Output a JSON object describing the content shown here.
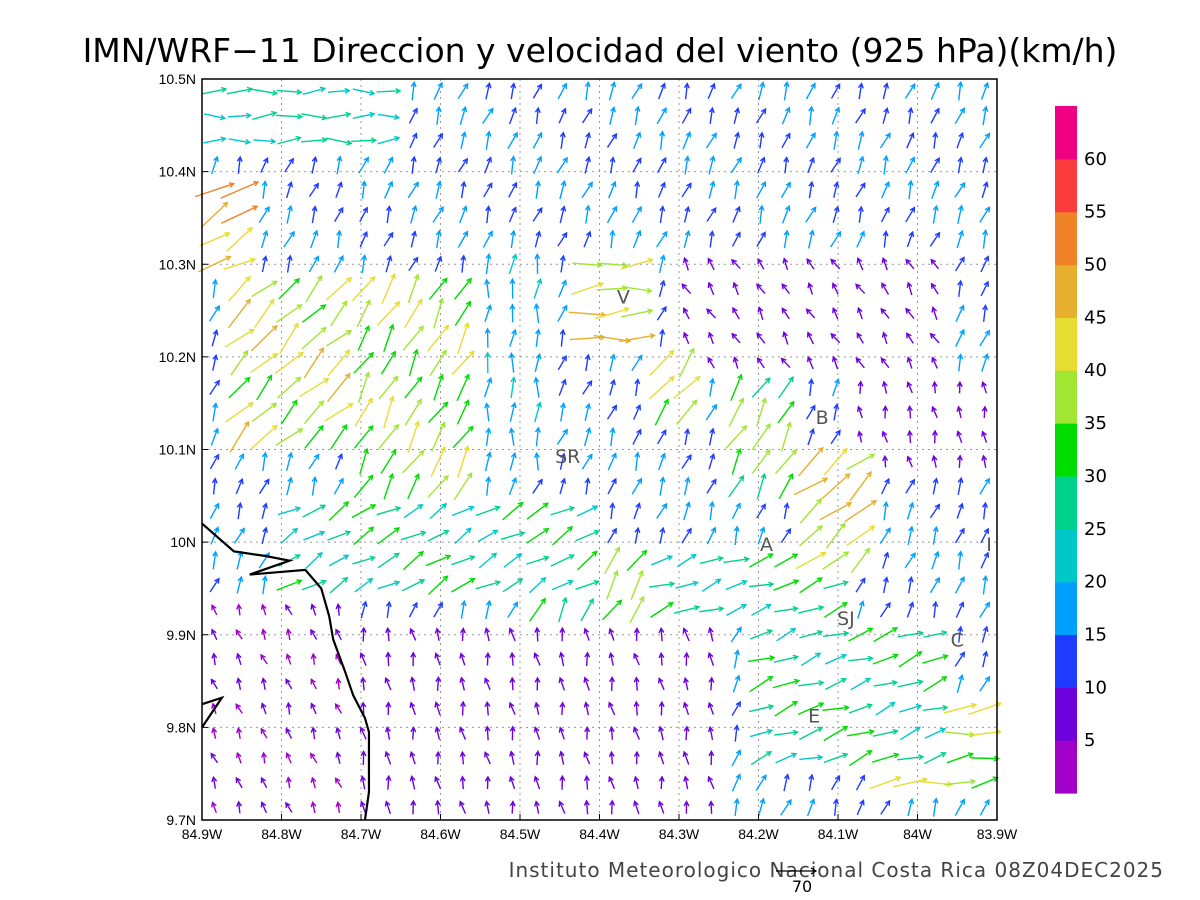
{
  "title": "IMN/WRF−11 Direccion y velocidad del viento (925 hPa)(km/h)",
  "credit": "Instituto Meteorologico Nacional Costa Rica 08Z04DEC2025",
  "reference_vector_label": "70",
  "map": {
    "lon_range": [
      -84.9,
      -83.9
    ],
    "lat_range": [
      9.7,
      10.5
    ],
    "grid": "dotted",
    "x_ticks": [
      {
        "lon": -84.9,
        "label": "84.9W"
      },
      {
        "lon": -84.8,
        "label": "84.8W"
      },
      {
        "lon": -84.7,
        "label": "84.7W"
      },
      {
        "lon": -84.6,
        "label": "84.6W"
      },
      {
        "lon": -84.5,
        "label": "84.5W"
      },
      {
        "lon": -84.4,
        "label": "84.4W"
      },
      {
        "lon": -84.3,
        "label": "84.3W"
      },
      {
        "lon": -84.2,
        "label": "84.2W"
      },
      {
        "lon": -84.1,
        "label": "84.1W"
      },
      {
        "lon": -84.0,
        "label": "84W"
      },
      {
        "lon": -83.9,
        "label": "83.9W"
      }
    ],
    "y_ticks": [
      {
        "lat": 9.7,
        "label": "9.7N"
      },
      {
        "lat": 9.8,
        "label": "9.8N"
      },
      {
        "lat": 9.9,
        "label": "9.9N"
      },
      {
        "lat": 10.0,
        "label": "10N"
      },
      {
        "lat": 10.1,
        "label": "10.1N"
      },
      {
        "lat": 10.2,
        "label": "10.2N"
      },
      {
        "lat": 10.3,
        "label": "10.3N"
      },
      {
        "lat": 10.4,
        "label": "10.4N"
      },
      {
        "lat": 10.5,
        "label": "10.5N"
      }
    ],
    "places": [
      {
        "label": "V",
        "lon": -84.37,
        "lat": 10.265
      },
      {
        "label": "SR",
        "lon": -84.44,
        "lat": 10.093
      },
      {
        "label": "B",
        "lon": -84.12,
        "lat": 10.135
      },
      {
        "label": "A",
        "lon": -84.19,
        "lat": 9.998
      },
      {
        "label": "SJ",
        "lon": -84.09,
        "lat": 9.918
      },
      {
        "label": "C",
        "lon": -83.95,
        "lat": 9.895
      },
      {
        "label": "E",
        "lon": -84.13,
        "lat": 9.813
      },
      {
        "label": "I",
        "lon": -83.91,
        "lat": 9.998
      }
    ],
    "coastline": [
      [
        [
          -84.9,
          10.02
        ],
        [
          -84.86,
          9.99
        ],
        [
          -84.82,
          9.985
        ],
        [
          -84.79,
          9.98
        ],
        [
          -84.84,
          9.965
        ],
        [
          -84.77,
          9.97
        ],
        [
          -84.75,
          9.95
        ],
        [
          -84.74,
          9.92
        ],
        [
          -84.735,
          9.895
        ],
        [
          -84.72,
          9.86
        ],
        [
          -84.71,
          9.835
        ],
        [
          -84.695,
          9.81
        ],
        [
          -84.69,
          9.795
        ],
        [
          -84.69,
          9.73
        ],
        [
          -84.695,
          9.7
        ]
      ],
      [
        [
          -84.9,
          9.825
        ],
        [
          -84.875,
          9.832
        ],
        [
          -84.9,
          9.8
        ]
      ]
    ],
    "wind_regions": [
      {
        "lon": [
          -84.9,
          -84.65
        ],
        "lat": [
          10.43,
          10.5
        ],
        "dir": 268,
        "speed": 26
      },
      {
        "lon": [
          -84.9,
          -84.85
        ],
        "lat": [
          10.3,
          10.38
        ],
        "dir": 240,
        "speed": 48
      },
      {
        "lon": [
          -84.88,
          -84.72
        ],
        "lat": [
          10.1,
          10.28
        ],
        "dir": 225,
        "speed": 40
      },
      {
        "lon": [
          -84.72,
          -84.55
        ],
        "lat": [
          10.05,
          10.28
        ],
        "dir": 210,
        "speed": 36
      },
      {
        "lon": [
          -84.55,
          -84.47
        ],
        "lat": [
          10.06,
          10.3
        ],
        "dir": 185,
        "speed": 18
      },
      {
        "lon": [
          -84.44,
          -84.33
        ],
        "lat": [
          10.2,
          10.3
        ],
        "dir": 265,
        "speed": 42
      },
      {
        "lon": [
          -84.35,
          -84.28
        ],
        "lat": [
          10.12,
          10.2
        ],
        "dir": 220,
        "speed": 38
      },
      {
        "lon": [
          -84.25,
          -84.15
        ],
        "lat": [
          10.05,
          10.18
        ],
        "dir": 210,
        "speed": 34
      },
      {
        "lon": [
          -84.15,
          -84.05
        ],
        "lat": [
          9.98,
          10.1
        ],
        "dir": 230,
        "speed": 43
      },
      {
        "lon": [
          -84.8,
          -84.4
        ],
        "lat": [
          9.95,
          10.05
        ],
        "dir": 240,
        "speed": 27
      },
      {
        "lon": [
          -84.5,
          -84.35
        ],
        "lat": [
          9.92,
          10.0
        ],
        "dir": 210,
        "speed": 33
      },
      {
        "lon": [
          -84.35,
          -84.1
        ],
        "lat": [
          9.9,
          10.0
        ],
        "dir": 250,
        "speed": 27
      },
      {
        "lon": [
          -84.2,
          -83.95
        ],
        "lat": [
          9.75,
          9.9
        ],
        "dir": 250,
        "speed": 28
      },
      {
        "lon": [
          -84.05,
          -83.9
        ],
        "lat": [
          9.72,
          9.82
        ],
        "dir": 262,
        "speed": 38
      },
      {
        "lon": [
          -84.9,
          -84.7
        ],
        "lat": [
          9.7,
          9.95
        ],
        "dir": 160,
        "speed": 5
      },
      {
        "lon": [
          -84.7,
          -84.25
        ],
        "lat": [
          9.7,
          9.9
        ],
        "dir": 170,
        "speed": 8
      },
      {
        "lon": [
          -84.3,
          -83.95
        ],
        "lat": [
          10.18,
          10.32
        ],
        "dir": 150,
        "speed": 7
      },
      {
        "lon": [
          -84.1,
          -83.9
        ],
        "lat": [
          10.08,
          10.18
        ],
        "dir": 170,
        "speed": 6
      }
    ],
    "default_wind": {
      "dir": 200,
      "speed": 15
    }
  },
  "colorbar": {
    "labels": [
      "5",
      "10",
      "15",
      "20",
      "25",
      "30",
      "35",
      "40",
      "45",
      "50",
      "55",
      "60"
    ],
    "bins": [
      {
        "max": 5,
        "color": "#a000c8"
      },
      {
        "max": 10,
        "color": "#6e00dc"
      },
      {
        "max": 15,
        "color": "#1e3cff"
      },
      {
        "max": 20,
        "color": "#00a0ff"
      },
      {
        "max": 25,
        "color": "#00c8c8"
      },
      {
        "max": 30,
        "color": "#00d28c"
      },
      {
        "max": 35,
        "color": "#00dc00"
      },
      {
        "max": 40,
        "color": "#a0e632"
      },
      {
        "max": 45,
        "color": "#e6dc32"
      },
      {
        "max": 50,
        "color": "#e6af2d"
      },
      {
        "max": 55,
        "color": "#f08228"
      },
      {
        "max": 60,
        "color": "#fa3c3c"
      },
      {
        "max": 999,
        "color": "#f00082"
      }
    ]
  }
}
